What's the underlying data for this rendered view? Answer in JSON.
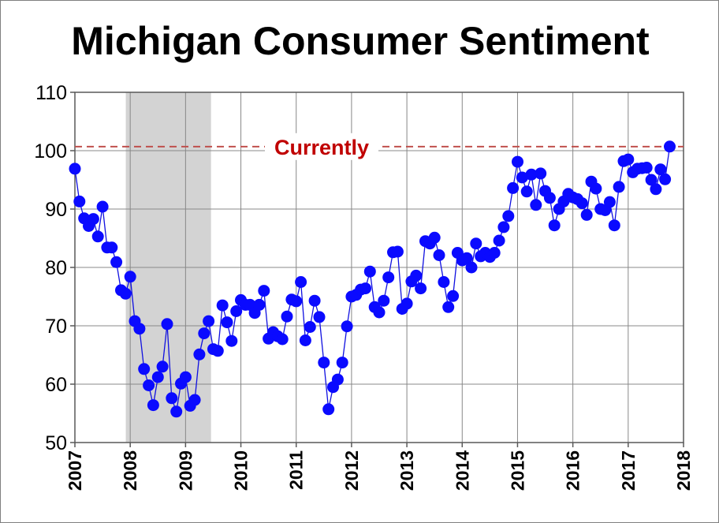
{
  "chart_data": {
    "type": "line",
    "title": "Michigan Consumer Sentiment",
    "xlabel": "",
    "ylabel": "",
    "ylim": [
      50,
      110
    ],
    "yticks": [
      50,
      60,
      70,
      80,
      90,
      100,
      110
    ],
    "xlim": [
      2007,
      2018
    ],
    "xticks": [
      2007,
      2008,
      2009,
      2010,
      2011,
      2012,
      2013,
      2014,
      2015,
      2016,
      2017,
      2018
    ],
    "grid": true,
    "line_color": "#1010e0",
    "marker_color": "#0a0aff",
    "recession": {
      "start": 2007.92,
      "end": 2009.46,
      "color": "#d3d3d3"
    },
    "reference_line": {
      "value": 100.7,
      "label": "Currently",
      "color": "#c0504d",
      "label_color": "#c00000"
    },
    "series": [
      {
        "name": "Michigan Consumer Sentiment",
        "start_year": 2007,
        "frequency": "monthly",
        "values": [
          96.9,
          91.3,
          88.4,
          87.1,
          88.3,
          85.3,
          90.4,
          83.4,
          83.4,
          80.9,
          76.1,
          75.5,
          78.4,
          70.8,
          69.5,
          62.6,
          59.8,
          56.4,
          61.2,
          63.0,
          70.3,
          57.6,
          55.3,
          60.1,
          61.2,
          56.3,
          57.3,
          65.1,
          68.7,
          70.8,
          66.0,
          65.7,
          73.5,
          70.6,
          67.4,
          72.5,
          74.4,
          73.6,
          73.6,
          72.2,
          73.6,
          76.0,
          67.8,
          68.9,
          68.2,
          67.7,
          71.6,
          74.5,
          74.2,
          77.5,
          67.5,
          69.8,
          74.3,
          71.5,
          63.7,
          55.7,
          59.5,
          60.8,
          63.7,
          69.9,
          75.0,
          75.3,
          76.2,
          76.4,
          79.3,
          73.2,
          72.3,
          74.3,
          78.3,
          82.6,
          82.7,
          72.9,
          73.8,
          77.6,
          78.6,
          76.4,
          84.5,
          84.1,
          85.1,
          82.1,
          77.5,
          73.2,
          75.1,
          82.5,
          81.2,
          81.6,
          80.0,
          84.1,
          81.9,
          82.5,
          81.8,
          82.5,
          84.6,
          86.9,
          88.8,
          93.6,
          98.1,
          95.4,
          93.0,
          95.9,
          90.7,
          96.1,
          93.1,
          91.9,
          87.2,
          90.0,
          91.3,
          92.6,
          92.0,
          91.7,
          91.0,
          89.0,
          94.7,
          93.5,
          90.0,
          89.8,
          91.2,
          87.2,
          93.8,
          98.2,
          98.5,
          96.3,
          96.9,
          97.0,
          97.1,
          95.0,
          93.4,
          96.8,
          95.1,
          100.7
        ]
      }
    ]
  }
}
